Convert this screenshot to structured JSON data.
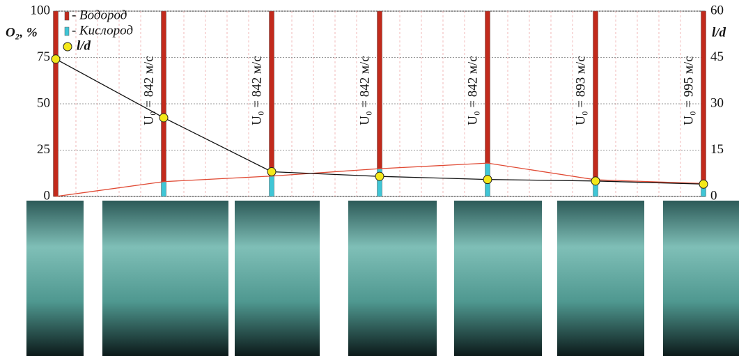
{
  "chart_data": {
    "type": "bar",
    "y_label": "O₂, %",
    "y2_label": "l/d",
    "categories": [
      null,
      null,
      null,
      null,
      null,
      null,
      null
    ],
    "series": [
      {
        "name": "Водород",
        "color": "#c22a1c",
        "values": [
          100,
          92,
          89,
          85,
          82,
          91,
          93
        ]
      },
      {
        "name": "Кислород",
        "color": "#3fc6d6",
        "line_color": "#e04a34",
        "values": [
          0,
          8,
          11,
          15,
          18,
          9,
          7
        ]
      },
      {
        "name": "l/d",
        "type": "line",
        "axis": "y2",
        "color": "#111111",
        "marker_color": "#f4e81a",
        "values": [
          44.5,
          25.5,
          8,
          6.5,
          5.5,
          5,
          4
        ]
      }
    ],
    "annotations": [
      "U₀ = 842 м/с",
      "U₀ = 842 м/с",
      "U₀ = 842 м/с",
      "U₀ = 842 м/с",
      "U₀ = 893 м/с",
      "U₀ = 995 м/с"
    ],
    "ylim": [
      0,
      100
    ],
    "yticks": [
      0,
      25,
      50,
      75,
      100
    ],
    "y2lim": [
      0,
      60
    ],
    "y2ticks": [
      0,
      15,
      30,
      45,
      60
    ],
    "grid": true
  }
}
